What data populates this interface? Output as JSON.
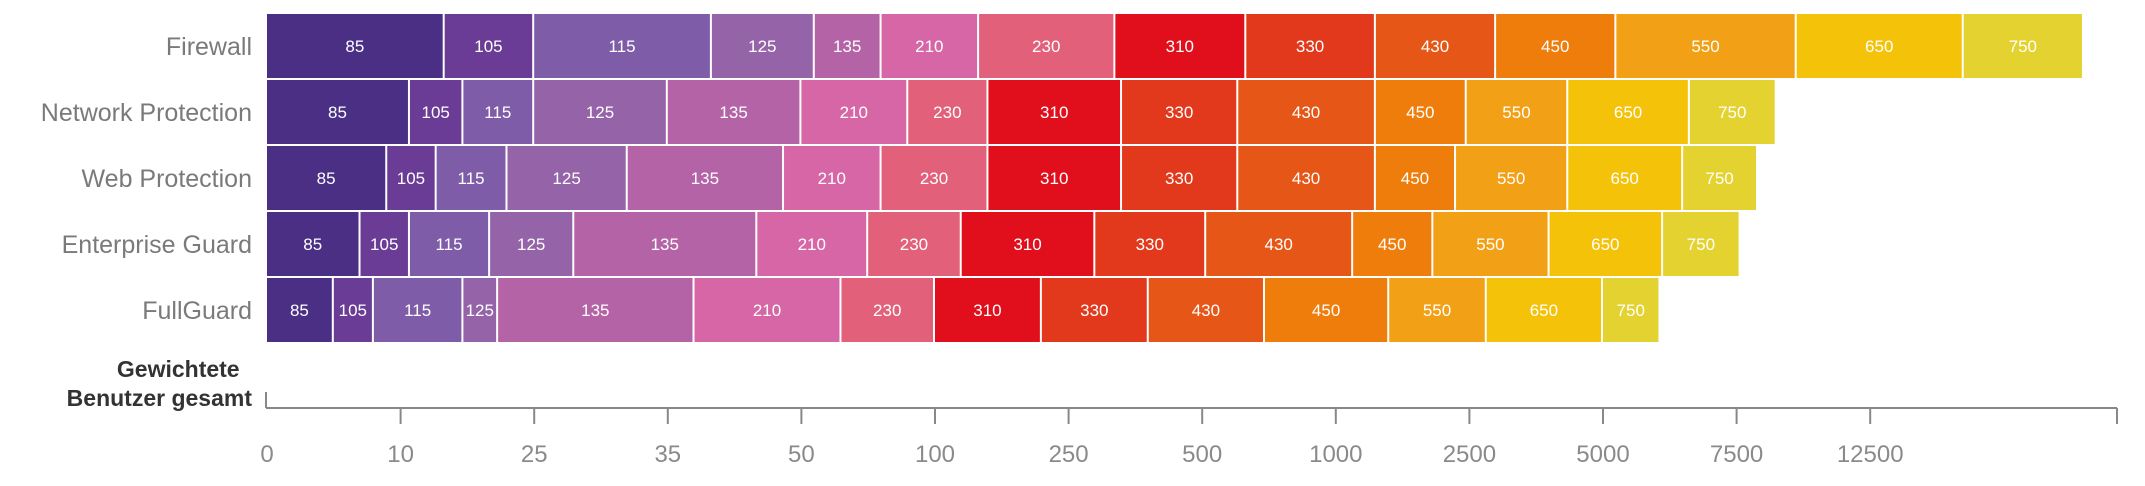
{
  "chart_data": {
    "type": "bar",
    "orientation": "horizontal",
    "stacked": true,
    "title": "",
    "xlabel": "Gewichtete Benutzer gesamt",
    "xlabel_lines": [
      "Gewichtete",
      "Benutzer gesamt"
    ],
    "ylabel": "",
    "categories": [
      "Firewall",
      "Network Protection",
      "Web Protection",
      "Enterprise Guard",
      "FullGuard"
    ],
    "segment_labels": [
      "85",
      "105",
      "115",
      "125",
      "135",
      "210",
      "230",
      "310",
      "330",
      "430",
      "450",
      "550",
      "650",
      "750"
    ],
    "segment_colors": [
      "#4a2f85",
      "#6b3c96",
      "#7e5ca8",
      "#9563a8",
      "#b464a6",
      "#d766a6",
      "#e2607a",
      "#e10f1b",
      "#e2391d",
      "#e55617",
      "#ef7d0c",
      "#f2a015",
      "#f5c20a",
      "#e3d22f"
    ],
    "x_ticks": [
      "0",
      "10",
      "25",
      "35",
      "50",
      "100",
      "250",
      "500",
      "1000",
      "2500",
      "5000",
      "7500",
      "12500"
    ],
    "x_tick_positions": [
      0,
      1,
      2,
      3,
      4,
      5,
      6,
      7,
      8,
      9,
      10,
      11,
      12
    ],
    "xlim": [
      0,
      13.8
    ],
    "series": [
      {
        "name": "Firewall",
        "boundaries": [
          0,
          1.33,
          2.0,
          3.33,
          4.1,
          4.6,
          5.33,
          6.35,
          7.33,
          8.3,
          9.2,
          10.1,
          11.45,
          12.7,
          13.6
        ]
      },
      {
        "name": "Network Protection",
        "boundaries": [
          0,
          1.07,
          1.47,
          2.0,
          3.0,
          4.0,
          4.8,
          5.4,
          6.4,
          7.27,
          8.3,
          8.98,
          9.74,
          10.65,
          11.3
        ]
      },
      {
        "name": "Web Protection",
        "boundaries": [
          0,
          0.9,
          1.27,
          1.8,
          2.7,
          3.87,
          4.6,
          5.4,
          6.4,
          7.27,
          8.3,
          8.9,
          9.74,
          10.6,
          11.16
        ]
      },
      {
        "name": "Enterprise Guard",
        "boundaries": [
          0,
          0.7,
          1.07,
          1.67,
          2.3,
          3.67,
          4.5,
          5.2,
          6.2,
          7.03,
          8.13,
          8.73,
          9.6,
          10.45,
          11.03
        ]
      },
      {
        "name": "FullGuard",
        "boundaries": [
          0,
          0.5,
          0.8,
          1.47,
          1.73,
          3.2,
          4.3,
          5.0,
          5.8,
          6.6,
          7.47,
          8.4,
          9.13,
          10.0,
          10.43
        ]
      }
    ]
  }
}
